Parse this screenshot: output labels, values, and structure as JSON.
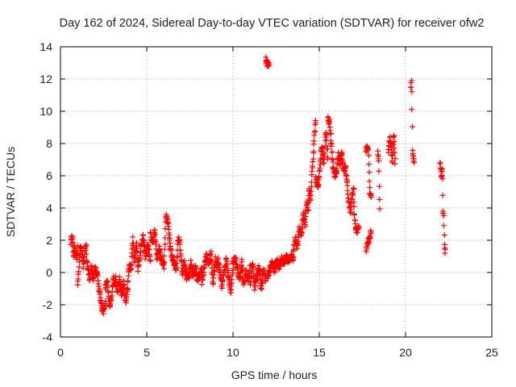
{
  "chart_data": {
    "type": "scatter",
    "title": "Day 162 of 2024, Sidereal Day-to-day VTEC variation (SDTVAR) for receiver ofw2",
    "xlabel": "GPS time / hours",
    "ylabel": "SDTVAR / TECUs",
    "xlim": [
      0,
      25
    ],
    "ylim": [
      -4,
      14
    ],
    "xticks": [
      0,
      5,
      10,
      15,
      20,
      25
    ],
    "yticks": [
      -4,
      -2,
      0,
      2,
      4,
      6,
      8,
      10,
      12,
      14
    ],
    "grid": true,
    "marker": "plus",
    "color": "#ff0000",
    "series": [
      {
        "name": "SDTVAR",
        "segments": [
          {
            "x0": 0.6,
            "x1": 1.0,
            "y": [
              1.8,
              2.3,
              1.0,
              1.7,
              0.9,
              1.5
            ]
          },
          {
            "x0": 1.0,
            "x1": 1.5,
            "y": [
              -0.6,
              0.5,
              1.6,
              1.2,
              0.3,
              1.4,
              1.7
            ]
          },
          {
            "x0": 1.5,
            "x1": 2.1,
            "y": [
              1.0,
              0.2,
              -0.4,
              0.3,
              -0.5,
              0.4,
              -0.2
            ]
          },
          {
            "x0": 2.1,
            "x1": 2.6,
            "y": [
              0.2,
              -0.8,
              -1.5,
              -2.2,
              -2.4,
              -1.8
            ]
          },
          {
            "x0": 2.6,
            "x1": 3.2,
            "y": [
              -1.0,
              -0.5,
              -2.2,
              -1.4,
              -0.3,
              -0.8
            ]
          },
          {
            "x0": 3.2,
            "x1": 3.9,
            "y": [
              -0.3,
              -1.2,
              -0.4,
              -1.5,
              -0.6,
              -1.8,
              -0.9
            ]
          },
          {
            "x0": 3.9,
            "x1": 4.5,
            "y": [
              -0.5,
              0.5,
              0.3,
              2.1,
              0.6,
              1.8,
              0.2
            ]
          },
          {
            "x0": 4.5,
            "x1": 5.2,
            "y": [
              0.4,
              1.2,
              2.3,
              0.9,
              1.8,
              0.8
            ]
          },
          {
            "x0": 5.2,
            "x1": 6.0,
            "y": [
              2.4,
              1.9,
              2.6,
              0.9,
              1.5,
              0.7,
              0.5
            ]
          },
          {
            "x0": 6.0,
            "x1": 6.6,
            "y": [
              0.4,
              3.6,
              3.1,
              1.6,
              0.9,
              0.5
            ]
          },
          {
            "x0": 6.6,
            "x1": 7.3,
            "y": [
              0.6,
              0.2,
              2.2,
              1.4,
              -0.2,
              0.7,
              -0.5
            ]
          },
          {
            "x0": 7.3,
            "x1": 8.2,
            "y": [
              0.1,
              -0.4,
              0.6,
              -0.2,
              0.4,
              -0.5,
              -0.1,
              0.3
            ]
          },
          {
            "x0": 8.2,
            "x1": 9.1,
            "y": [
              -0.6,
              0.3,
              1.1,
              0.5,
              1.2,
              -0.7,
              0.8,
              0.2
            ]
          },
          {
            "x0": 9.1,
            "x1": 10.0,
            "y": [
              0.9,
              0.2,
              -0.8,
              0.1,
              0.8,
              -0.4,
              -1.2,
              0.3
            ]
          },
          {
            "x0": 10.0,
            "x1": 11.0,
            "y": [
              0.6,
              1.0,
              0.2,
              -0.5,
              0.7,
              -0.8,
              0.1,
              -0.6,
              0.4
            ]
          },
          {
            "x0": 11.0,
            "x1": 11.9,
            "y": [
              -0.7,
              0.6,
              -0.9,
              -0.2,
              0.4,
              -1.0,
              0.2,
              -0.5
            ]
          },
          {
            "x0": 11.9,
            "x1": 12.1,
            "y": [
              13.2,
              12.9,
              13.0
            ]
          },
          {
            "x0": 12.0,
            "x1": 13.5,
            "y": [
              -0.3,
              0.2,
              0.6,
              0.1,
              0.8,
              0.3,
              0.9,
              0.5,
              1.0,
              0.6,
              1.1,
              0.8
            ]
          },
          {
            "x0": 13.5,
            "x1": 14.2,
            "y": [
              1.2,
              2.1,
              1.6,
              2.8,
              2.2,
              3.6,
              2.9
            ]
          },
          {
            "x0": 14.2,
            "x1": 14.8,
            "y": [
              3.4,
              4.3,
              3.8,
              5.2,
              4.6,
              6.1,
              7.3,
              8.6,
              9.3
            ]
          },
          {
            "x0": 14.8,
            "x1": 15.5,
            "y": [
              6.0,
              5.1,
              6.4,
              7.8,
              6.6,
              8.8,
              7.1
            ]
          },
          {
            "x0": 15.5,
            "x1": 16.0,
            "y": [
              9.5,
              9.3,
              7.9,
              6.5,
              6.0,
              6.2
            ]
          },
          {
            "x0": 16.0,
            "x1": 16.5,
            "y": [
              6.1,
              7.3,
              6.8,
              7.5,
              6.5,
              6.3
            ]
          },
          {
            "x0": 16.5,
            "x1": 17.0,
            "y": [
              6.7,
              5.6,
              4.4,
              3.8,
              4.6,
              5.3
            ]
          },
          {
            "x0": 17.0,
            "x1": 17.3,
            "y": [
              4.2,
              2.7,
              2.5,
              2.8
            ]
          },
          {
            "x0": 17.7,
            "x1": 18.0,
            "y": [
              7.6,
              7.7,
              7.5,
              5.0,
              4.6
            ]
          },
          {
            "x0": 17.7,
            "x1": 18.0,
            "y": [
              1.3,
              1.8,
              2.2,
              2.6
            ]
          },
          {
            "x0": 18.4,
            "x1": 18.5,
            "y": [
              7.6,
              7.0,
              3.9
            ]
          },
          {
            "x0": 19.0,
            "x1": 19.4,
            "y": [
              7.3,
              8.4,
              7.9,
              6.8,
              8.7,
              6.6
            ]
          },
          {
            "x0": 20.3,
            "x1": 20.5,
            "y": [
              11.5,
              11.8,
              7.7,
              7.0,
              6.8
            ]
          },
          {
            "x0": 22.0,
            "x1": 22.3,
            "y": [
              6.9,
              6.4,
              5.8,
              6.6,
              3.8,
              3.4,
              1.7,
              1.2
            ]
          }
        ]
      }
    ]
  }
}
